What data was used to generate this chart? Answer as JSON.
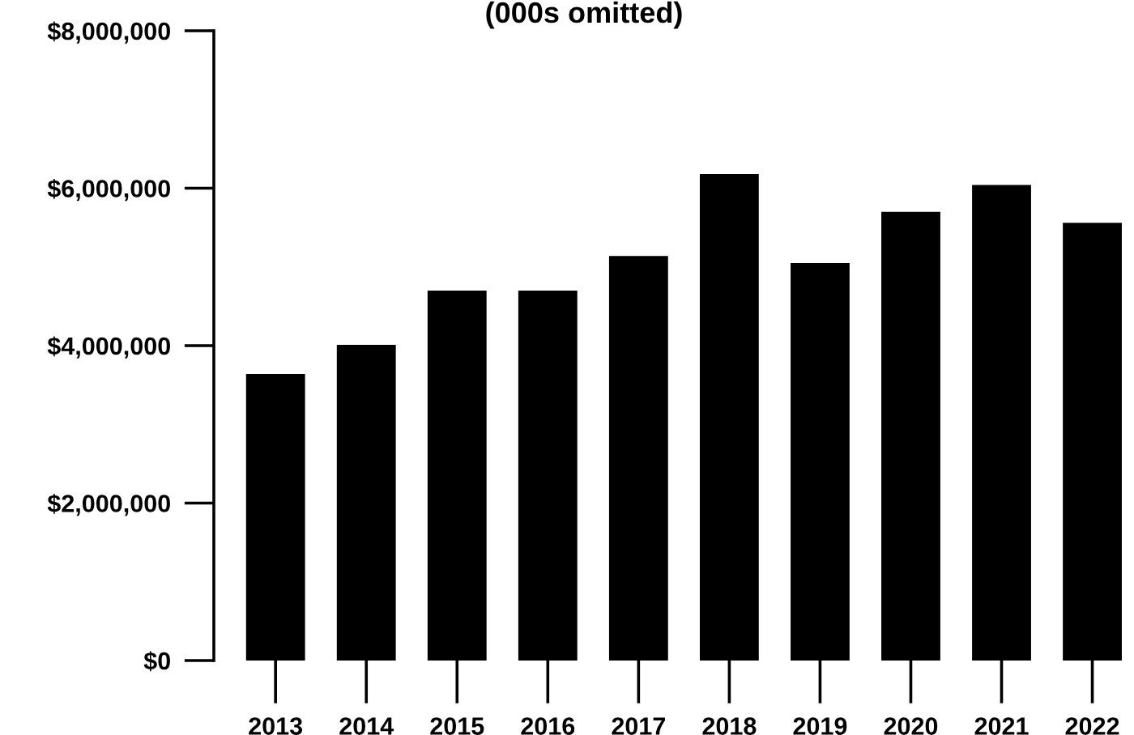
{
  "chart_data": {
    "type": "bar",
    "title": "(000s omitted)",
    "categories": [
      "2013",
      "2014",
      "2015",
      "2016",
      "2017",
      "2018",
      "2019",
      "2020",
      "2021",
      "2022"
    ],
    "values": [
      3640000,
      4010000,
      4700000,
      4700000,
      5140000,
      6180000,
      5050000,
      5700000,
      6040000,
      5560000
    ],
    "color": "#000000",
    "ylim": [
      0,
      8000000
    ],
    "yticks": [
      {
        "value": 0,
        "label": "$0"
      },
      {
        "value": 2000000,
        "label": "$2,000,000"
      },
      {
        "value": 4000000,
        "label": "$4,000,000"
      },
      {
        "value": 6000000,
        "label": "$6,000,000"
      },
      {
        "value": 8000000,
        "label": "$8,000,000"
      }
    ],
    "grid": false
  }
}
